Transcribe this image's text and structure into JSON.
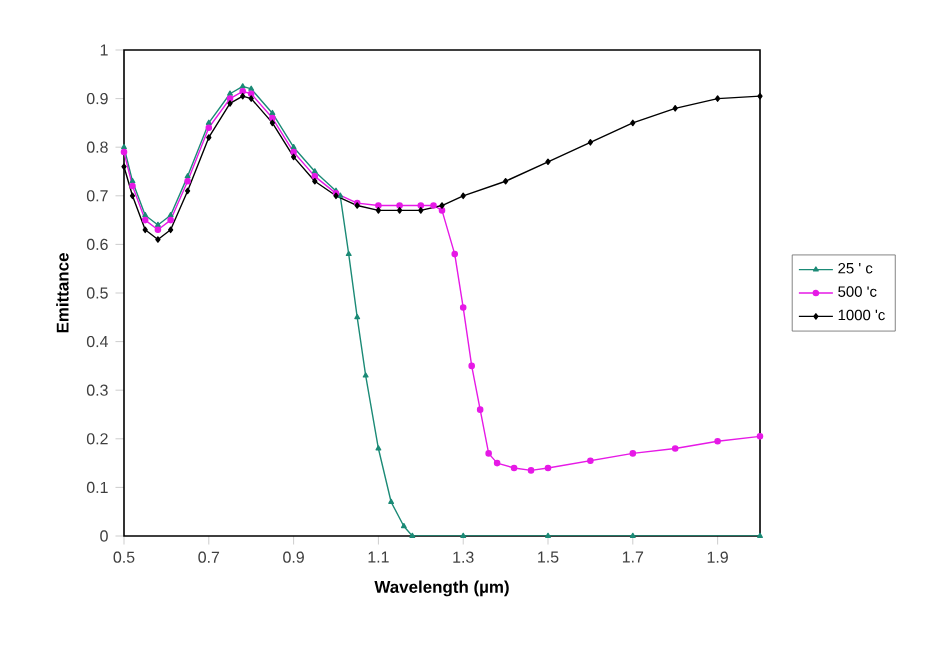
{
  "chart_data": {
    "type": "line",
    "xlabel": "Wavelength (µm)",
    "ylabel": "Emittance",
    "xlim": [
      0.5,
      2.0
    ],
    "ylim": [
      0,
      1
    ],
    "xticks": [
      0.5,
      0.7,
      0.9,
      1.1,
      1.3,
      1.5,
      1.7,
      1.9
    ],
    "yticks": [
      0,
      0.1,
      0.2,
      0.3,
      0.4,
      0.5,
      0.6,
      0.7,
      0.8,
      0.9,
      1
    ],
    "grid": false,
    "legend": "right",
    "line_style": "solid",
    "series": [
      {
        "name": "25 ' c",
        "color": "#1b8a76",
        "marker": "triangle",
        "x": [
          0.5,
          0.52,
          0.55,
          0.58,
          0.61,
          0.65,
          0.7,
          0.75,
          0.78,
          0.8,
          0.85,
          0.9,
          0.95,
          1.0,
          1.01,
          1.03,
          1.05,
          1.07,
          1.1,
          1.13,
          1.16,
          1.18,
          1.3,
          1.5,
          1.7,
          2.0
        ],
        "values": [
          0.8,
          0.73,
          0.66,
          0.64,
          0.66,
          0.74,
          0.85,
          0.91,
          0.925,
          0.92,
          0.87,
          0.8,
          0.75,
          0.71,
          0.7,
          0.58,
          0.45,
          0.33,
          0.18,
          0.07,
          0.02,
          0.0,
          0.0,
          0.0,
          0.0,
          0.0
        ]
      },
      {
        "name": "500 'c",
        "color": "#e619e6",
        "marker": "circle",
        "x": [
          0.5,
          0.52,
          0.55,
          0.58,
          0.61,
          0.65,
          0.7,
          0.75,
          0.78,
          0.8,
          0.85,
          0.9,
          0.95,
          1.0,
          1.05,
          1.1,
          1.15,
          1.2,
          1.23,
          1.25,
          1.28,
          1.3,
          1.32,
          1.34,
          1.36,
          1.38,
          1.42,
          1.46,
          1.5,
          1.6,
          1.7,
          1.8,
          1.9,
          2.0
        ],
        "values": [
          0.79,
          0.72,
          0.65,
          0.63,
          0.65,
          0.73,
          0.84,
          0.9,
          0.915,
          0.91,
          0.86,
          0.79,
          0.74,
          0.705,
          0.685,
          0.68,
          0.68,
          0.68,
          0.68,
          0.67,
          0.58,
          0.47,
          0.35,
          0.26,
          0.17,
          0.15,
          0.14,
          0.135,
          0.14,
          0.155,
          0.17,
          0.18,
          0.195,
          0.205
        ]
      },
      {
        "name": "1000 'c",
        "color": "#000000",
        "marker": "diamond",
        "x": [
          0.5,
          0.52,
          0.55,
          0.58,
          0.61,
          0.65,
          0.7,
          0.75,
          0.78,
          0.8,
          0.85,
          0.9,
          0.95,
          1.0,
          1.05,
          1.1,
          1.15,
          1.2,
          1.25,
          1.3,
          1.4,
          1.5,
          1.6,
          1.7,
          1.8,
          1.9,
          2.0
        ],
        "values": [
          0.76,
          0.7,
          0.63,
          0.61,
          0.63,
          0.71,
          0.82,
          0.89,
          0.905,
          0.9,
          0.85,
          0.78,
          0.73,
          0.7,
          0.68,
          0.67,
          0.67,
          0.67,
          0.68,
          0.7,
          0.73,
          0.77,
          0.81,
          0.85,
          0.88,
          0.9,
          0.905
        ]
      }
    ]
  }
}
